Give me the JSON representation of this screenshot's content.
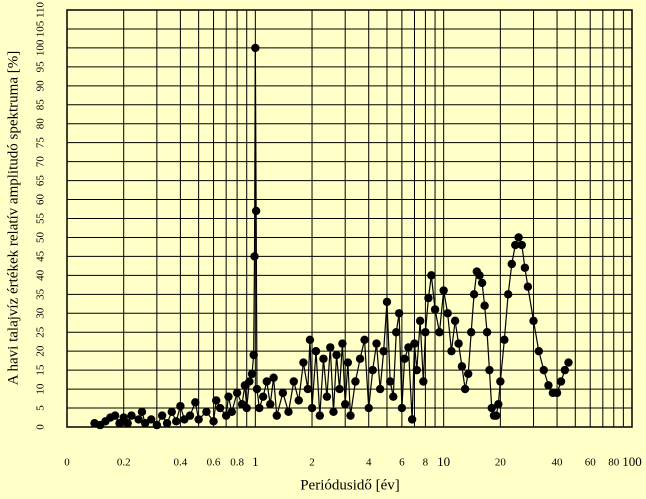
{
  "chart_data": {
    "type": "line",
    "x_label": "Periódusidő [év]",
    "y_label": "A havi talajvíz értékek relatív amplitudó spektruma [%]",
    "xscale": "log",
    "xlim": [
      0.1,
      100
    ],
    "ylim": [
      0,
      110
    ],
    "xticks": [
      {
        "value": 0.1,
        "label": "0"
      },
      0.2,
      0.4,
      0.6,
      0.8,
      1,
      2,
      4,
      6,
      8,
      10,
      20,
      40,
      60,
      80,
      100
    ],
    "xminor_ticks": [
      0.3,
      0.5,
      0.7,
      0.9,
      3,
      5,
      7,
      9,
      30,
      50,
      70,
      90
    ],
    "yticks": [
      0,
      5,
      10,
      15,
      20,
      25,
      30,
      35,
      40,
      45,
      50,
      55,
      60,
      65,
      70,
      75,
      80,
      85,
      90,
      95,
      100,
      105,
      110
    ],
    "grid": true,
    "series": [
      {
        "color": "#000000",
        "x": [
          0.14,
          0.15,
          0.16,
          0.17,
          0.18,
          0.19,
          0.2,
          0.21,
          0.22,
          0.24,
          0.25,
          0.26,
          0.28,
          0.3,
          0.32,
          0.34,
          0.36,
          0.38,
          0.4,
          0.42,
          0.45,
          0.48,
          0.5,
          0.55,
          0.6,
          0.62,
          0.65,
          0.7,
          0.72,
          0.75,
          0.8,
          0.85,
          0.88,
          0.9,
          0.93,
          0.96,
          0.98,
          0.99,
          1.0,
          1.01,
          1.02,
          1.05,
          1.1,
          1.15,
          1.2,
          1.25,
          1.3,
          1.4,
          1.5,
          1.6,
          1.7,
          1.8,
          1.9,
          1.95,
          2.0,
          2.1,
          2.2,
          2.3,
          2.4,
          2.5,
          2.6,
          2.7,
          2.8,
          2.9,
          3.0,
          3.1,
          3.2,
          3.4,
          3.6,
          3.8,
          4.0,
          4.2,
          4.4,
          4.6,
          4.8,
          5.0,
          5.2,
          5.4,
          5.6,
          5.8,
          6.0,
          6.2,
          6.5,
          6.8,
          7.0,
          7.2,
          7.5,
          7.8,
          8.0,
          8.3,
          8.6,
          9.0,
          9.5,
          10,
          10.5,
          11,
          11.5,
          12,
          12.5,
          13,
          13.5,
          14,
          14.5,
          15,
          15.5,
          16,
          16.5,
          17,
          17.5,
          18,
          18.5,
          19,
          19.5,
          20,
          21,
          22,
          23,
          24,
          25,
          26,
          27,
          28,
          30,
          32,
          34,
          36,
          38,
          40,
          42,
          44,
          46
        ],
        "values": [
          1,
          0.5,
          1.5,
          2.5,
          3,
          1,
          2.5,
          1,
          3,
          2,
          4,
          1,
          2,
          0.5,
          3,
          1,
          4,
          1.5,
          5.5,
          2,
          3,
          6.5,
          2,
          4,
          1.5,
          7,
          5,
          3,
          8,
          4,
          9,
          6,
          11,
          5,
          12,
          14,
          19,
          45,
          100,
          57,
          10,
          5,
          8,
          12,
          6,
          13,
          3,
          9,
          4,
          12,
          7,
          17,
          10,
          23,
          5,
          20,
          3,
          18,
          8,
          21,
          4,
          19,
          10,
          22,
          6,
          17,
          3,
          12,
          18,
          23,
          5,
          15,
          22,
          10,
          20,
          33,
          12,
          8,
          25,
          30,
          5,
          18,
          21,
          2,
          22,
          15,
          28,
          12,
          25,
          34,
          40,
          31,
          25,
          36,
          30,
          20,
          28,
          22,
          16,
          10,
          14,
          25,
          35,
          41,
          40,
          38,
          32,
          25,
          15,
          5,
          3,
          3,
          6,
          12,
          23,
          35,
          43,
          48,
          50,
          48,
          42,
          37,
          28,
          20,
          15,
          11,
          9,
          9,
          12,
          15,
          17
        ]
      }
    ]
  }
}
